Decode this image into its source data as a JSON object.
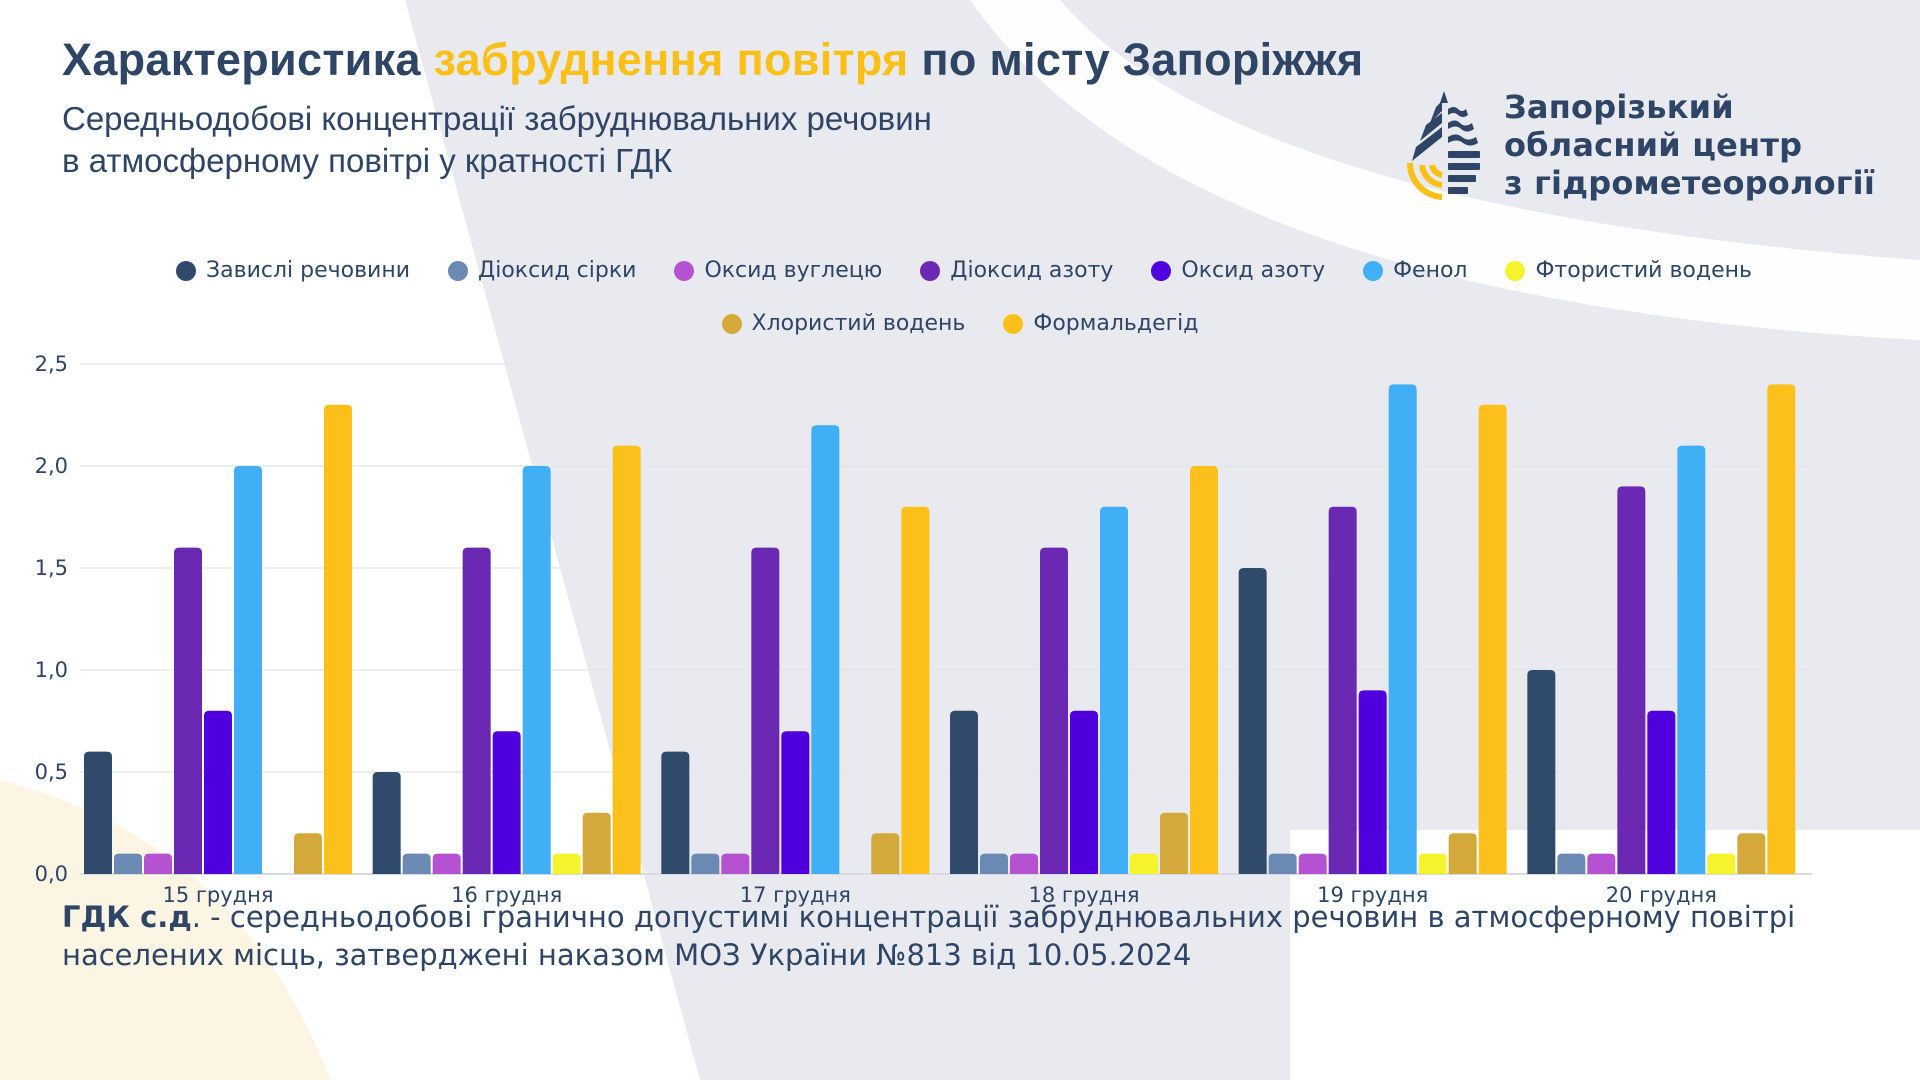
{
  "header": {
    "title_part1": "Характеристика ",
    "title_accent": "забруднення повітря",
    "title_part2": " по місту Запоріжжя",
    "subtitle_line1": "Середньодобові концентрації забруднювальних речовин",
    "subtitle_line2": "в атмосферному повітрі у кратності ГДК"
  },
  "logo": {
    "line1": "Запорізький",
    "line2": "обласний центр",
    "line3": "з гідрометеорології",
    "icon": "water-drop-logo-icon"
  },
  "colors": {
    "primary_text": "#2f4566",
    "accent": "#fbbf16",
    "background_shape": "#e9eaef",
    "background_warm": "#fdf5e4"
  },
  "footnote": {
    "bold": "ГДК с.д",
    "rest_line1": ". - середньодобові гранично допустимі концентрації забруднювальних речовин в атмосферному повітрі",
    "line2": "населених місць, затверджені наказом МОЗ України №813 від 10.05.2024"
  },
  "chart_data": {
    "type": "bar",
    "title": "",
    "xlabel": "",
    "ylabel": "",
    "ylim": [
      0,
      2.5
    ],
    "yticks": [
      "0,0",
      "0,5",
      "1,0",
      "1,5",
      "2,0",
      "2,5"
    ],
    "ytick_values": [
      0,
      0.5,
      1.0,
      1.5,
      2.0,
      2.5
    ],
    "grid": true,
    "legend_position": "top-center",
    "categories": [
      "15 грудня",
      "16 грудня",
      "17 грудня",
      "18 грудня",
      "19 грудня",
      "20 грудня"
    ],
    "series": [
      {
        "name": "Завислі речовини",
        "color": "#2f4a6b",
        "values": [
          0.6,
          0.5,
          0.6,
          0.8,
          1.5,
          1.0
        ]
      },
      {
        "name": "Діоксид сірки",
        "color": "#6a89b3",
        "values": [
          0.1,
          0.1,
          0.1,
          0.1,
          0.1,
          0.1
        ]
      },
      {
        "name": "Оксид вуглецю",
        "color": "#b452d1",
        "values": [
          0.1,
          0.1,
          0.1,
          0.1,
          0.1,
          0.1
        ]
      },
      {
        "name": "Діоксид азоту",
        "color": "#6a28b3",
        "values": [
          1.6,
          1.6,
          1.6,
          1.6,
          1.8,
          1.9
        ]
      },
      {
        "name": "Оксид азоту",
        "color": "#5000dc",
        "values": [
          0.8,
          0.7,
          0.7,
          0.8,
          0.9,
          0.8
        ]
      },
      {
        "name": "Фенол",
        "color": "#40aff5",
        "values": [
          2.0,
          2.0,
          2.2,
          1.8,
          2.4,
          2.1
        ]
      },
      {
        "name": "Фтористий водень",
        "color": "#f5f22e",
        "values": [
          0,
          0.1,
          0,
          0.1,
          0.1,
          0.1
        ]
      },
      {
        "name": "Хлористий водень",
        "color": "#d2a93a",
        "values": [
          0.2,
          0.3,
          0.2,
          0.3,
          0.2,
          0.2
        ]
      },
      {
        "name": "Формальдегід",
        "color": "#fcc01a",
        "values": [
          2.3,
          2.1,
          1.8,
          2.0,
          2.3,
          2.4
        ]
      }
    ]
  }
}
